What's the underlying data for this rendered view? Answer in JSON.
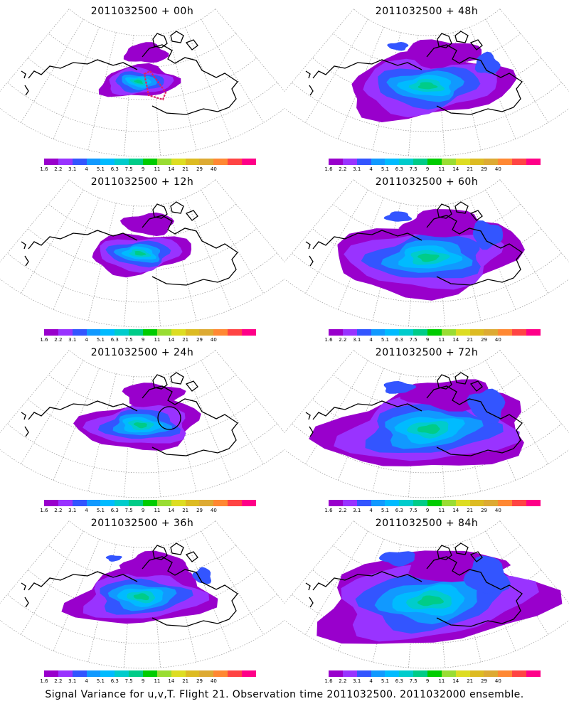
{
  "caption": "Signal Variance for u,v,T. Flight 21. Observation time 2011032500. 2011032000 ensemble.",
  "colorbar": {
    "colors": [
      "#9900cc",
      "#9933ff",
      "#3355ff",
      "#1199ff",
      "#00bbff",
      "#00cccc",
      "#00cc88",
      "#00cc00",
      "#99dd33",
      "#dddd22",
      "#ddbb22",
      "#ddaa33",
      "#ff8833",
      "#ff4444",
      "#ff0088"
    ],
    "tick_labels": [
      "1.6",
      "2.2",
      "3.1",
      "4",
      "5.1",
      "6.3",
      "7.5",
      "9",
      "11",
      "14",
      "21",
      "29",
      "40"
    ]
  },
  "panels": [
    {
      "title": "2011032500  + 00h",
      "lead_hours": 0,
      "max_level": "7.5",
      "flight_track": true
    },
    {
      "title": "2011032500  + 48h",
      "lead_hours": 48,
      "max_level": "5.1",
      "flight_track": false
    },
    {
      "title": "2011032500  + 12h",
      "lead_hours": 12,
      "max_level": "6.3",
      "flight_track": false
    },
    {
      "title": "2011032500  + 60h",
      "lead_hours": 60,
      "max_level": "7.5",
      "flight_track": false
    },
    {
      "title": "2011032500  + 24h",
      "lead_hours": 24,
      "max_level": "5.1",
      "flight_track": true
    },
    {
      "title": "2011032500  + 72h",
      "lead_hours": 72,
      "max_level": "7.5",
      "flight_track": false
    },
    {
      "title": "2011032500  + 36h",
      "lead_hours": 36,
      "max_level": "5.1",
      "flight_track": false
    },
    {
      "title": "2011032500  + 84h",
      "lead_hours": 84,
      "max_level": "7.5",
      "flight_track": false
    }
  ]
}
